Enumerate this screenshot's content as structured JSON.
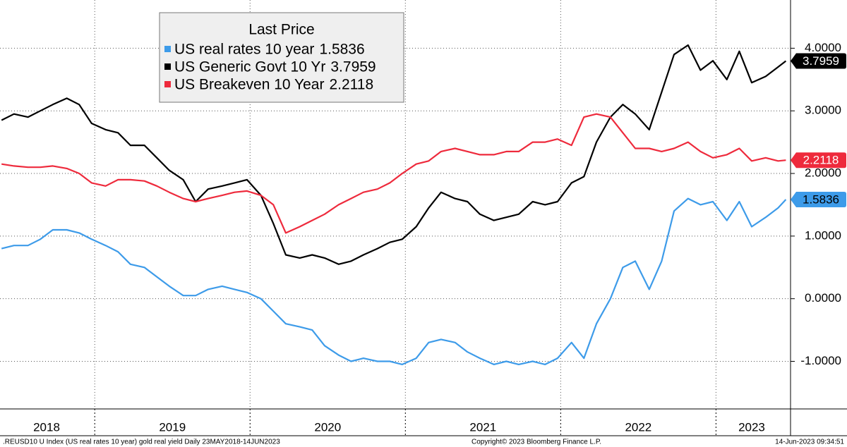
{
  "chart_data": {
    "type": "line",
    "legend_title": "Last Price",
    "x": [
      2018.4,
      2018.48,
      2018.57,
      2018.65,
      2018.73,
      2018.82,
      2018.9,
      2018.98,
      2019.07,
      2019.15,
      2019.23,
      2019.32,
      2019.4,
      2019.48,
      2019.57,
      2019.65,
      2019.73,
      2019.82,
      2019.9,
      2019.98,
      2020.07,
      2020.15,
      2020.23,
      2020.32,
      2020.4,
      2020.48,
      2020.57,
      2020.65,
      2020.73,
      2020.82,
      2020.9,
      2020.98,
      2021.07,
      2021.15,
      2021.23,
      2021.32,
      2021.4,
      2021.48,
      2021.57,
      2021.65,
      2021.73,
      2021.82,
      2021.9,
      2021.98,
      2022.07,
      2022.15,
      2022.23,
      2022.32,
      2022.4,
      2022.48,
      2022.57,
      2022.65,
      2022.73,
      2022.82,
      2022.9,
      2022.98,
      2023.07,
      2023.15,
      2023.23,
      2023.32,
      2023.4,
      2023.45
    ],
    "series": [
      {
        "name": "US real rates 10 year",
        "color": "#3d9be9",
        "tag_text_color": "#000000",
        "values": [
          0.8,
          0.85,
          0.85,
          0.95,
          1.1,
          1.1,
          1.05,
          0.95,
          0.85,
          0.75,
          0.55,
          0.5,
          0.35,
          0.2,
          0.05,
          0.05,
          0.15,
          0.2,
          0.15,
          0.1,
          0.0,
          -0.2,
          -0.4,
          -0.45,
          -0.5,
          -0.75,
          -0.9,
          -1.0,
          -0.95,
          -1.0,
          -1.0,
          -1.05,
          -0.95,
          -0.7,
          -0.65,
          -0.7,
          -0.85,
          -0.95,
          -1.05,
          -1.0,
          -1.05,
          -1.0,
          -1.05,
          -0.95,
          -0.7,
          -0.95,
          -0.4,
          0.0,
          0.5,
          0.6,
          0.15,
          0.6,
          1.4,
          1.6,
          1.5,
          1.55,
          1.25,
          1.55,
          1.15,
          1.3,
          1.45,
          1.5836
        ]
      },
      {
        "name": "US Generic Govt 10 Yr",
        "color": "#000000",
        "tag_text_color": "#ffffff",
        "values": [
          2.85,
          2.95,
          2.9,
          3.0,
          3.1,
          3.2,
          3.1,
          2.8,
          2.7,
          2.65,
          2.45,
          2.45,
          2.25,
          2.05,
          1.9,
          1.55,
          1.75,
          1.8,
          1.85,
          1.9,
          1.65,
          1.2,
          0.7,
          0.65,
          0.7,
          0.65,
          0.55,
          0.6,
          0.7,
          0.8,
          0.9,
          0.95,
          1.15,
          1.45,
          1.7,
          1.6,
          1.55,
          1.35,
          1.25,
          1.3,
          1.35,
          1.55,
          1.5,
          1.55,
          1.85,
          1.95,
          2.5,
          2.9,
          3.1,
          2.95,
          2.7,
          3.3,
          3.9,
          4.05,
          3.65,
          3.8,
          3.5,
          3.95,
          3.45,
          3.55,
          3.7,
          3.7959
        ]
      },
      {
        "name": "US Breakeven 10 Year",
        "color": "#ee2a3c",
        "tag_text_color": "#ffffff",
        "values": [
          2.15,
          2.12,
          2.1,
          2.1,
          2.12,
          2.08,
          2.0,
          1.85,
          1.8,
          1.9,
          1.9,
          1.88,
          1.8,
          1.7,
          1.6,
          1.55,
          1.6,
          1.65,
          1.7,
          1.72,
          1.65,
          1.5,
          1.05,
          1.15,
          1.25,
          1.35,
          1.5,
          1.6,
          1.7,
          1.75,
          1.85,
          2.0,
          2.15,
          2.2,
          2.35,
          2.4,
          2.35,
          2.3,
          2.3,
          2.35,
          2.35,
          2.5,
          2.5,
          2.55,
          2.45,
          2.9,
          2.95,
          2.9,
          2.65,
          2.4,
          2.4,
          2.35,
          2.4,
          2.5,
          2.35,
          2.25,
          2.3,
          2.4,
          2.2,
          2.25,
          2.2,
          2.2118
        ]
      }
    ],
    "xlim": [
      2018.39,
      2023.48
    ],
    "xticks": [
      {
        "value": 2018.69,
        "label": "2018"
      },
      {
        "value": 2019.5,
        "label": "2019"
      },
      {
        "value": 2020.5,
        "label": "2020"
      },
      {
        "value": 2021.5,
        "label": "2021"
      },
      {
        "value": 2022.5,
        "label": "2022"
      },
      {
        "value": 2023.23,
        "label": "2023"
      }
    ],
    "x_separators": [
      2019,
      2020,
      2021,
      2022,
      2023
    ],
    "ylim": [
      -1.76,
      4.77
    ],
    "yticks": [
      {
        "value": -1,
        "label": "-1.0000"
      },
      {
        "value": 0,
        "label": "0.0000"
      },
      {
        "value": 1,
        "label": "1.0000"
      },
      {
        "value": 2,
        "label": "2.0000"
      },
      {
        "value": 3,
        "label": "3.0000"
      },
      {
        "value": 4,
        "label": "4.0000"
      }
    ],
    "grid": true,
    "footer_left": ".REUSD10 U Index (US real rates 10 year) gold real yield  Daily 23MAY2018-14JUN2023",
    "footer_center": "Copyright© 2023 Bloomberg Finance L.P.",
    "footer_right": "14-Jun-2023 09:34:51"
  }
}
